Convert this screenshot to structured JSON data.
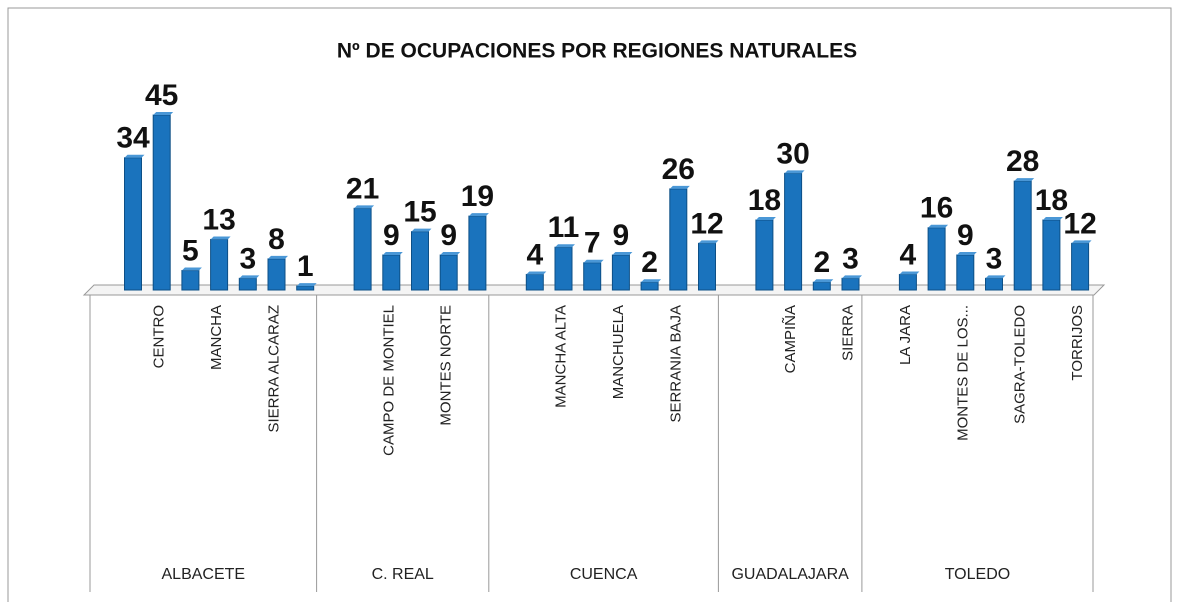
{
  "chart_data": {
    "type": "bar",
    "title": "Nº DE OCUPACIONES POR REGIONES NATURALES",
    "color": "#1a73bd",
    "groups": [
      {
        "label": "ALBACETE",
        "categories": [
          null,
          "CENTRO",
          null,
          "MANCHA",
          null,
          "SIERRA ALCARAZ",
          null
        ],
        "values": [
          34,
          45,
          5,
          13,
          3,
          8,
          1
        ]
      },
      {
        "label": "C. REAL",
        "categories": [
          null,
          "CAMPO DE MONTIEL",
          null,
          "MONTES NORTE",
          null
        ],
        "values": [
          21,
          9,
          15,
          9,
          19
        ]
      },
      {
        "label": "CUENCA",
        "categories": [
          null,
          "MANCHA ALTA",
          null,
          "MANCHUELA",
          null,
          "SERRANIA BAJA",
          null
        ],
        "values": [
          4,
          11,
          7,
          9,
          2,
          26,
          12
        ]
      },
      {
        "label": "GUADALAJARA",
        "categories": [
          null,
          "CAMPIÑA",
          null,
          "SIERRA"
        ],
        "values": [
          18,
          30,
          2,
          3
        ]
      },
      {
        "label": "TOLEDO",
        "categories": [
          "LA JARA",
          null,
          "MONTES DE LOS...",
          null,
          "SAGRA-TOLEDO",
          null,
          "TORRIJOS"
        ],
        "values": [
          4,
          16,
          9,
          3,
          28,
          18,
          12
        ]
      }
    ]
  }
}
